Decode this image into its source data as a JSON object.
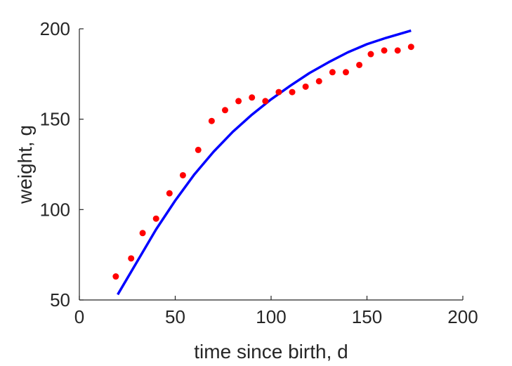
{
  "chart_data": {
    "type": "scatter",
    "title": "",
    "xlabel": "time since birth, d",
    "ylabel": "weight, g",
    "xlim": [
      0,
      200
    ],
    "ylim": [
      50,
      200
    ],
    "xticks": [
      0,
      50,
      100,
      150,
      200
    ],
    "yticks": [
      50,
      100,
      150,
      200
    ],
    "xtick_labels": [
      "0",
      "50",
      "100",
      "150",
      "200"
    ],
    "ytick_labels": [
      "50",
      "100",
      "150",
      "200"
    ],
    "grid": false,
    "legend": "none",
    "series": [
      {
        "type": "scatter",
        "color": "#ff0000",
        "x": [
          19,
          27,
          33,
          40,
          47,
          54,
          62,
          69,
          76,
          83,
          90,
          97,
          104,
          111,
          118,
          125,
          132,
          139,
          146,
          152,
          159,
          166,
          173
        ],
        "y": [
          63,
          73,
          87,
          95,
          109,
          119,
          133,
          149,
          155,
          160,
          162,
          160,
          165,
          165,
          168,
          171,
          176,
          176,
          180,
          186,
          188,
          188,
          190
        ]
      },
      {
        "type": "line",
        "color": "#0000ff",
        "x": [
          20,
          30,
          40,
          50,
          60,
          70,
          80,
          90,
          100,
          110,
          120,
          130,
          140,
          150,
          160,
          173
        ],
        "y": [
          53,
          71,
          89,
          105,
          119.5,
          132,
          143,
          152.5,
          161,
          168.5,
          175.5,
          181.5,
          187,
          191.5,
          195,
          199
        ]
      }
    ]
  }
}
